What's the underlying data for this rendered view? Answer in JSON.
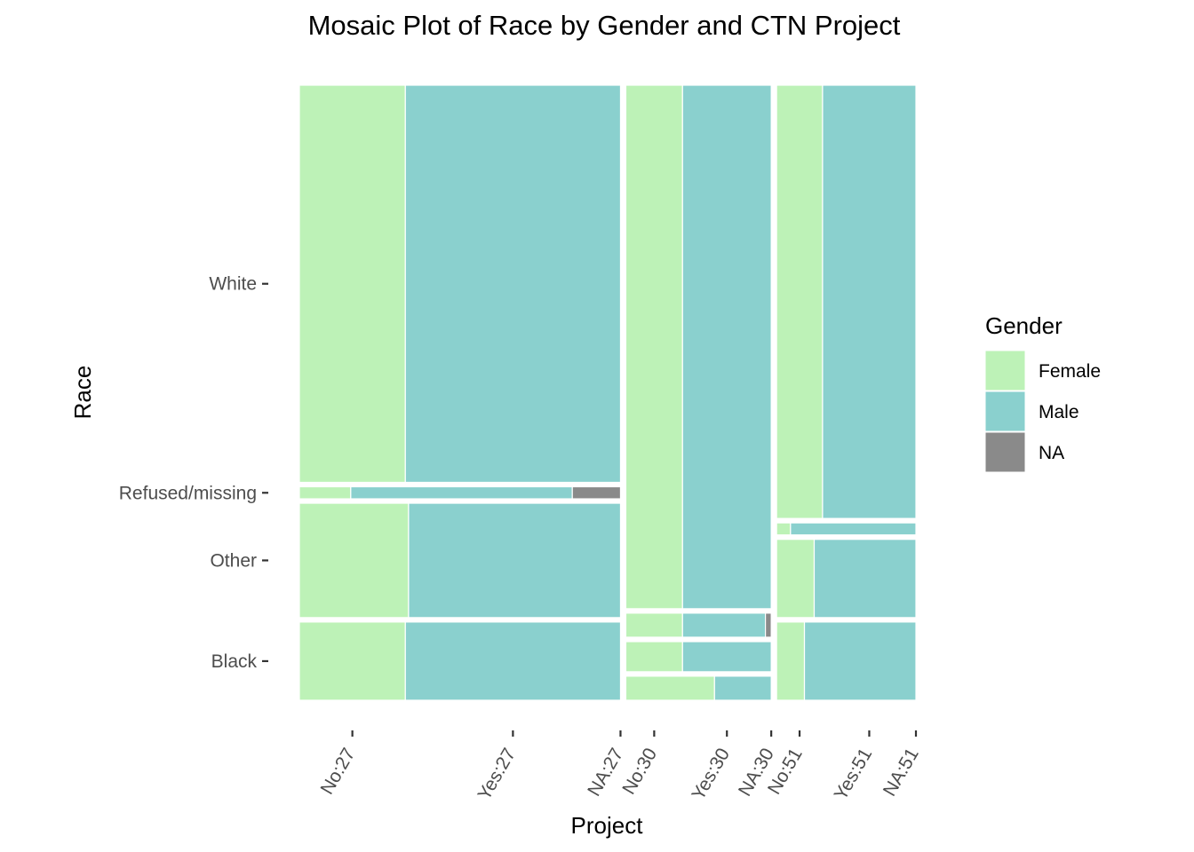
{
  "chart_data": {
    "type": "mosaic",
    "title": "Mosaic Plot of Race by Gender and CTN Project",
    "xlabel": "Project",
    "ylabel": "Race",
    "grid": false,
    "legend_position": "right",
    "legend": {
      "title": "Gender",
      "entries": [
        {
          "label": "Female",
          "color": "#bdf2b7"
        },
        {
          "label": "Male",
          "color": "#8ad0ce"
        },
        {
          "label": "NA",
          "color": "#8a8a8a"
        }
      ]
    },
    "race_categories": [
      "White",
      "Refused/missing",
      "Other",
      "Black"
    ],
    "x_tick_labels": [
      "No:27",
      "Yes:27",
      "NA:27",
      "No:30",
      "Yes:30",
      "NA:30",
      "No:51",
      "Yes:51",
      "NA:51"
    ],
    "projects": [
      {
        "name": "27",
        "share": 0.53,
        "races": [
          {
            "race": "White",
            "share": 0.66,
            "gender": {
              "Female": 0.33,
              "Male": 0.67,
              "NA": 0.0
            }
          },
          {
            "race": "Refused/missing",
            "share": 0.02,
            "gender": {
              "Female": 0.16,
              "Male": 0.69,
              "NA": 0.15
            }
          },
          {
            "race": "Other",
            "share": 0.19,
            "gender": {
              "Female": 0.34,
              "Male": 0.66,
              "NA": 0.0
            }
          },
          {
            "race": "Black",
            "share": 0.13,
            "gender": {
              "Female": 0.33,
              "Male": 0.67,
              "NA": 0.0
            }
          }
        ]
      },
      {
        "name": "30",
        "share": 0.24,
        "races": [
          {
            "race": "White",
            "share": 0.87,
            "gender": {
              "Female": 0.39,
              "Male": 0.61,
              "NA": 0.0
            }
          },
          {
            "race": "Refused/missing",
            "share": 0.04,
            "gender": {
              "Female": 0.39,
              "Male": 0.57,
              "NA": 0.04
            }
          },
          {
            "race": "Other",
            "share": 0.05,
            "gender": {
              "Female": 0.39,
              "Male": 0.61,
              "NA": 0.0
            }
          },
          {
            "race": "Black",
            "share": 0.04,
            "gender": {
              "Female": 0.61,
              "Male": 0.39,
              "NA": 0.0
            }
          }
        ]
      },
      {
        "name": "51",
        "share": 0.23,
        "races": [
          {
            "race": "White",
            "share": 0.72,
            "gender": {
              "Female": 0.33,
              "Male": 0.67,
              "NA": 0.0
            }
          },
          {
            "race": "Refused/missing",
            "share": 0.02,
            "gender": {
              "Female": 0.1,
              "Male": 0.9,
              "NA": 0.0
            }
          },
          {
            "race": "Other",
            "share": 0.13,
            "gender": {
              "Female": 0.27,
              "Male": 0.73,
              "NA": 0.0
            }
          },
          {
            "race": "Black",
            "share": 0.13,
            "gender": {
              "Female": 0.2,
              "Male": 0.8,
              "NA": 0.0
            }
          }
        ]
      }
    ]
  }
}
